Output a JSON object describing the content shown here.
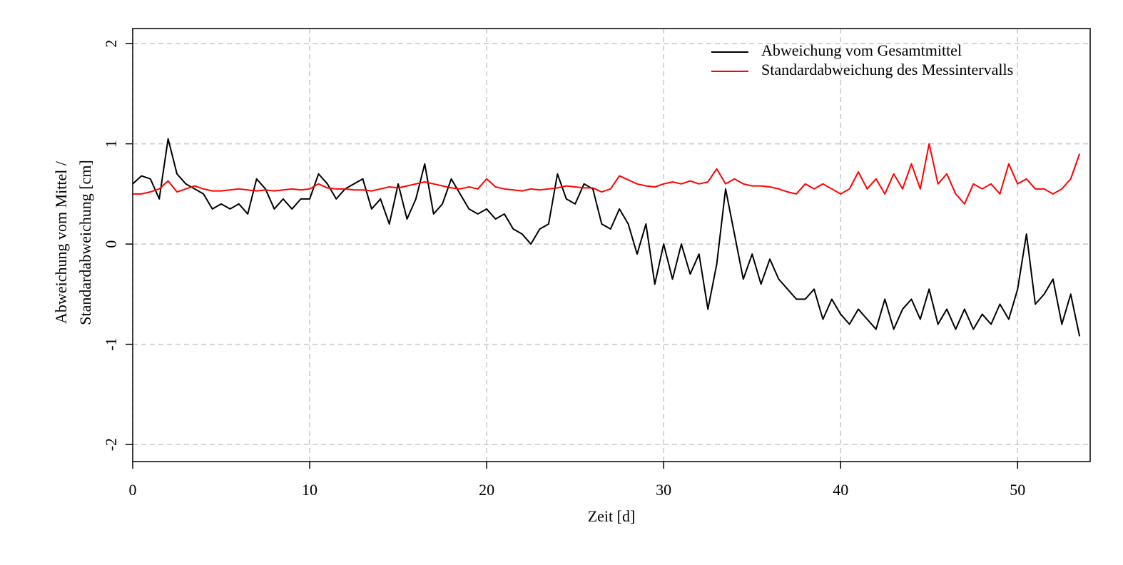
{
  "chart_data": {
    "type": "line",
    "xlabel": "Zeit [d]",
    "ylabel": [
      "Abweichung vom Mittel /",
      "Standardabweichung [cm]"
    ],
    "x": [
      0,
      0.5,
      1,
      1.5,
      2,
      2.5,
      3,
      3.5,
      4,
      4.5,
      5,
      5.5,
      6,
      6.5,
      7,
      7.5,
      8,
      8.5,
      9,
      9.5,
      10,
      10.5,
      11,
      11.5,
      12,
      12.5,
      13,
      13.5,
      14,
      14.5,
      15,
      15.5,
      16,
      16.5,
      17,
      17.5,
      18,
      18.5,
      19,
      19.5,
      20,
      20.5,
      21,
      21.5,
      22,
      22.5,
      23,
      23.5,
      24,
      24.5,
      25,
      25.5,
      26,
      26.5,
      27,
      27.5,
      28,
      28.5,
      29,
      29.5,
      30,
      30.5,
      31,
      31.5,
      32,
      32.5,
      33,
      33.5,
      34,
      34.5,
      35,
      35.5,
      36,
      36.5,
      37,
      37.5,
      38,
      38.5,
      39,
      39.5,
      40,
      40.5,
      41,
      41.5,
      42,
      42.5,
      43,
      43.5,
      44,
      44.5,
      45,
      45.5,
      46,
      46.5,
      47,
      47.5,
      48,
      48.5,
      49,
      49.5,
      50,
      50.5,
      51,
      51.5,
      52,
      52.5,
      53,
      53.5
    ],
    "series": [
      {
        "name": "Abweichung vom Gesamtmittel",
        "color": "#000000",
        "values": [
          0.6,
          0.68,
          0.65,
          0.45,
          1.05,
          0.7,
          0.6,
          0.55,
          0.5,
          0.35,
          0.4,
          0.35,
          0.4,
          0.3,
          0.65,
          0.55,
          0.35,
          0.45,
          0.35,
          0.45,
          0.45,
          0.7,
          0.6,
          0.45,
          0.55,
          0.6,
          0.65,
          0.35,
          0.45,
          0.2,
          0.6,
          0.25,
          0.45,
          0.8,
          0.3,
          0.4,
          0.65,
          0.5,
          0.35,
          0.3,
          0.35,
          0.25,
          0.3,
          0.15,
          0.1,
          0.0,
          0.15,
          0.2,
          0.7,
          0.45,
          0.4,
          0.6,
          0.55,
          0.2,
          0.15,
          0.35,
          0.2,
          -0.1,
          0.2,
          -0.4,
          0.0,
          -0.35,
          0.0,
          -0.3,
          -0.1,
          -0.65,
          -0.2,
          0.55,
          0.1,
          -0.35,
          -0.1,
          -0.4,
          -0.15,
          -0.35,
          -0.45,
          -0.55,
          -0.55,
          -0.45,
          -0.75,
          -0.55,
          -0.7,
          -0.8,
          -0.65,
          -0.75,
          -0.85,
          -0.55,
          -0.85,
          -0.65,
          -0.55,
          -0.75,
          -0.45,
          -0.8,
          -0.65,
          -0.85,
          -0.65,
          -0.85,
          -0.7,
          -0.8,
          -0.6,
          -0.75,
          -0.45,
          0.1,
          -0.6,
          -0.5,
          -0.35,
          -0.8,
          -0.5,
          -0.92
        ]
      },
      {
        "name": "Standardabweichung des Messintervalls",
        "color": "#ff0000",
        "values": [
          0.5,
          0.5,
          0.52,
          0.55,
          0.63,
          0.52,
          0.55,
          0.58,
          0.55,
          0.53,
          0.53,
          0.54,
          0.55,
          0.54,
          0.53,
          0.54,
          0.53,
          0.54,
          0.55,
          0.54,
          0.55,
          0.6,
          0.56,
          0.55,
          0.55,
          0.54,
          0.54,
          0.53,
          0.55,
          0.57,
          0.56,
          0.58,
          0.6,
          0.62,
          0.6,
          0.58,
          0.56,
          0.55,
          0.57,
          0.55,
          0.65,
          0.57,
          0.55,
          0.54,
          0.53,
          0.55,
          0.54,
          0.55,
          0.56,
          0.58,
          0.57,
          0.56,
          0.56,
          0.52,
          0.55,
          0.68,
          0.64,
          0.6,
          0.58,
          0.57,
          0.6,
          0.62,
          0.6,
          0.63,
          0.6,
          0.62,
          0.75,
          0.6,
          0.65,
          0.6,
          0.58,
          0.58,
          0.57,
          0.55,
          0.52,
          0.5,
          0.6,
          0.55,
          0.6,
          0.55,
          0.5,
          0.55,
          0.72,
          0.55,
          0.65,
          0.5,
          0.7,
          0.55,
          0.8,
          0.55,
          1.0,
          0.6,
          0.7,
          0.5,
          0.4,
          0.6,
          0.55,
          0.6,
          0.5,
          0.8,
          0.6,
          0.65,
          0.55,
          0.55,
          0.5,
          0.55,
          0.65,
          0.9
        ]
      }
    ],
    "xlim": [
      0,
      54.1
    ],
    "ylim": [
      -2.17,
      2.15
    ],
    "xticks": [
      0,
      10,
      20,
      30,
      40,
      50
    ],
    "yticks": [
      -2,
      -1,
      0,
      1,
      2
    ],
    "grid": true,
    "legend": "top-right"
  }
}
